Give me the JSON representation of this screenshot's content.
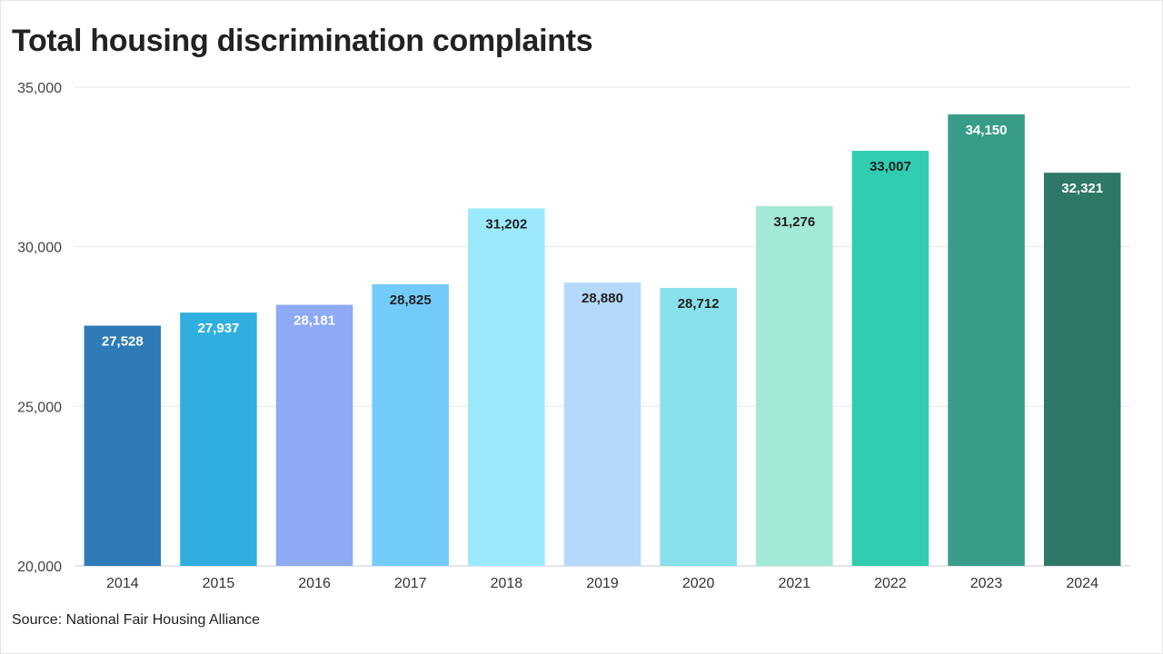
{
  "title": "Total housing discrimination complaints",
  "source": "Source: National Fair Housing Alliance",
  "chart_data": {
    "type": "bar",
    "categories": [
      "2014",
      "2015",
      "2016",
      "2017",
      "2018",
      "2019",
      "2020",
      "2021",
      "2022",
      "2023",
      "2024"
    ],
    "values": [
      27528,
      27937,
      28181,
      28825,
      31202,
      28880,
      28712,
      31276,
      33007,
      34150,
      32321
    ],
    "value_labels": [
      "27,528",
      "27,937",
      "28,181",
      "28,825",
      "31,202",
      "28,880",
      "28,712",
      "31,276",
      "33,007",
      "34,150",
      "32,321"
    ],
    "colors": [
      "#2f7bb7",
      "#30aedf",
      "#8eaaf7",
      "#73cbf9",
      "#9aeafc",
      "#b5d9fb",
      "#88e1ec",
      "#a3e9d8",
      "#31cdb0",
      "#389d88",
      "#2e7868"
    ],
    "label_colors": [
      "#ffffff",
      "#ffffff",
      "#ffffff",
      "#222222",
      "#222222",
      "#222222",
      "#222222",
      "#222222",
      "#222222",
      "#ffffff",
      "#ffffff"
    ],
    "yticks": [
      20000,
      25000,
      30000,
      35000
    ],
    "ytick_labels": [
      "20,000",
      "25,000",
      "30,000",
      "35,000"
    ],
    "ylim": [
      20000,
      35000
    ],
    "grid": true,
    "xlabel": "",
    "ylabel": ""
  }
}
